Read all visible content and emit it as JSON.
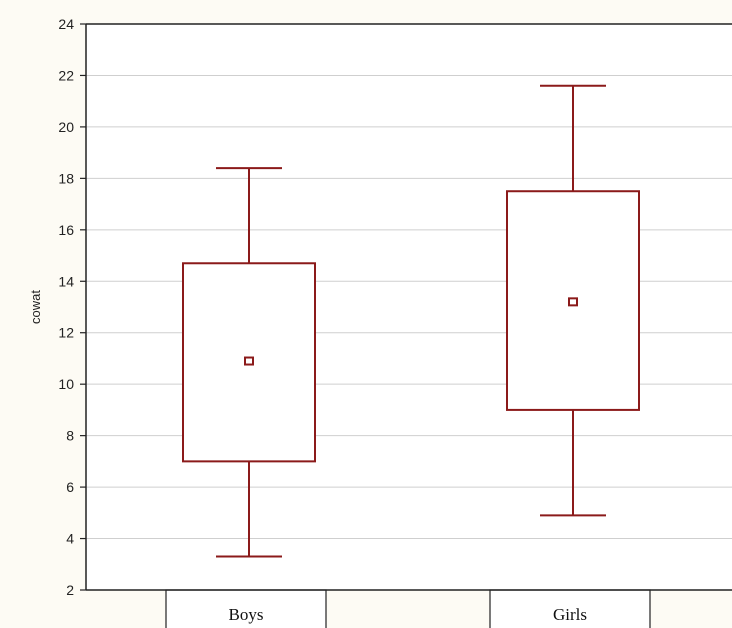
{
  "chart_data": {
    "type": "box",
    "ylabel": "cowat",
    "xlabel": "",
    "ylim": [
      2,
      24
    ],
    "yticks": [
      2,
      4,
      6,
      8,
      10,
      12,
      14,
      16,
      18,
      20,
      22,
      24
    ],
    "grid": true,
    "categories": [
      "Boys",
      "Girls"
    ],
    "boxes": [
      {
        "category": "Boys",
        "whisker_low": 3.3,
        "q1": 7.0,
        "mean": 10.9,
        "q3": 14.7,
        "whisker_high": 18.4
      },
      {
        "category": "Girls",
        "whisker_low": 4.9,
        "q1": 9.0,
        "mean": 13.2,
        "q3": 17.5,
        "whisker_high": 21.6
      }
    ]
  },
  "colors": {
    "box_stroke": "#8b1a1a",
    "grid": "#cfcfcf",
    "axis": "#222222",
    "background": "#fdfbf4",
    "plot_area": "#ffffff"
  }
}
